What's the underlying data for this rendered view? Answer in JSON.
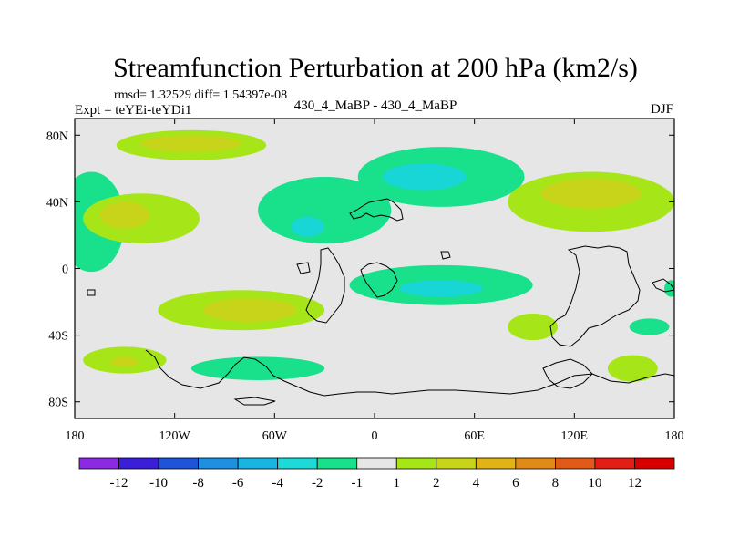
{
  "chart_data": {
    "type": "heatmap",
    "title": "Streamfunction Perturbation at 200 hPa (km2/s)",
    "stats": "rmsd= 1.32529 diff= 1.54397e-08",
    "experiment": "Expt = teYEi-teYDi1",
    "subtitle": "430_4_MaBP - 430_4_MaBP",
    "season": "DJF",
    "xlabel": "",
    "ylabel": "",
    "xlim": [
      -180,
      180
    ],
    "ylim": [
      -90,
      90
    ],
    "x_ticks": [
      {
        "value": -180,
        "label": "180"
      },
      {
        "value": -120,
        "label": "120W"
      },
      {
        "value": -60,
        "label": "60W"
      },
      {
        "value": 0,
        "label": "0"
      },
      {
        "value": 60,
        "label": "60E"
      },
      {
        "value": 120,
        "label": "120E"
      },
      {
        "value": 180,
        "label": "180"
      }
    ],
    "y_ticks": [
      {
        "value": 80,
        "label": "80N"
      },
      {
        "value": 40,
        "label": "40N"
      },
      {
        "value": 0,
        "label": "0"
      },
      {
        "value": -40,
        "label": "40S"
      },
      {
        "value": -80,
        "label": "80S"
      }
    ],
    "colorbar": {
      "labels": [
        "-12",
        "-10",
        "-8",
        "-6",
        "-4",
        "-2",
        "-1",
        "1",
        "2",
        "4",
        "6",
        "8",
        "10",
        "12"
      ],
      "colors": [
        "#8a2be2",
        "#3a1fd6",
        "#1f54d6",
        "#1f8fe0",
        "#19b4e0",
        "#1fd8d8",
        "#19e08a",
        "#e6e6e6",
        "#a6e619",
        "#c8d419",
        "#e0b419",
        "#e08a19",
        "#e05a19",
        "#e01f19",
        "#d70000"
      ]
    },
    "levels": {
      "minus2": "#19d6d6",
      "minus1": "#19e08a",
      "zero": "#e6e6e6",
      "plus1": "#a6e619",
      "plus2": "#c8d419"
    },
    "blobs": [
      {
        "name": "blob-north-pacific-arctic",
        "level": 1,
        "lon": -110,
        "lat": 74,
        "rlon": 45,
        "rlat": 9
      },
      {
        "name": "blob-north-pacific-arctic-core",
        "level": 2,
        "lon": -110,
        "lat": 75,
        "rlon": 30,
        "rlat": 5
      },
      {
        "name": "blob-north-pacific-low",
        "level": -1,
        "lon": -170,
        "lat": 28,
        "rlon": 20,
        "rlat": 30
      },
      {
        "name": "blob-north-pacific-high",
        "level": 1,
        "lon": -140,
        "lat": 30,
        "rlon": 35,
        "rlat": 15
      },
      {
        "name": "blob-north-pacific-high-core",
        "level": 2,
        "lon": -150,
        "lat": 32,
        "rlon": 15,
        "rlat": 8
      },
      {
        "name": "blob-north-atlantic-low",
        "level": -1,
        "lon": -30,
        "lat": 35,
        "rlon": 40,
        "rlat": 20
      },
      {
        "name": "blob-north-atlantic-core",
        "level": -2,
        "lon": -40,
        "lat": 25,
        "rlon": 10,
        "rlat": 6
      },
      {
        "name": "blob-eurasia-low",
        "level": -1,
        "lon": 40,
        "lat": 55,
        "rlon": 50,
        "rlat": 18
      },
      {
        "name": "blob-eurasia-core",
        "level": -2,
        "lon": 30,
        "lat": 55,
        "rlon": 25,
        "rlat": 8
      },
      {
        "name": "blob-asia-high",
        "level": 1,
        "lon": 130,
        "lat": 40,
        "rlon": 50,
        "rlat": 18
      },
      {
        "name": "blob-asia-high-core",
        "level": 2,
        "lon": 130,
        "lat": 45,
        "rlon": 30,
        "rlat": 9
      },
      {
        "name": "blob-indian-low",
        "level": -1,
        "lon": 40,
        "lat": -10,
        "rlon": 55,
        "rlat": 12
      },
      {
        "name": "blob-indian-core",
        "level": -2,
        "lon": 40,
        "lat": -12,
        "rlon": 25,
        "rlat": 5
      },
      {
        "name": "blob-south-atlantic-high",
        "level": 1,
        "lon": -80,
        "lat": -25,
        "rlon": 50,
        "rlat": 12
      },
      {
        "name": "blob-south-atlantic-core",
        "level": 2,
        "lon": -75,
        "lat": -25,
        "rlon": 28,
        "rlat": 7
      },
      {
        "name": "blob-south-pacific-high",
        "level": 1,
        "lon": -150,
        "lat": -55,
        "rlon": 25,
        "rlat": 8
      },
      {
        "name": "blob-south-pacific-core",
        "level": 2,
        "lon": -150,
        "lat": -56,
        "rlon": 8,
        "rlat": 3
      },
      {
        "name": "blob-southern-low",
        "level": -1,
        "lon": -70,
        "lat": -60,
        "rlon": 40,
        "rlat": 7
      },
      {
        "name": "blob-west-pacific-high",
        "level": 1,
        "lon": 155,
        "lat": -60,
        "rlon": 15,
        "rlat": 8
      },
      {
        "name": "blob-south-indian-high",
        "level": 1,
        "lon": 95,
        "lat": -35,
        "rlon": 15,
        "rlat": 8
      },
      {
        "name": "blob-east-low",
        "level": -1,
        "lon": 165,
        "lat": -35,
        "rlon": 12,
        "rlat": 5
      },
      {
        "name": "blob-far-east-low",
        "level": -1,
        "lon": 178,
        "lat": -12,
        "rlon": 4,
        "rlat": 5
      }
    ]
  }
}
